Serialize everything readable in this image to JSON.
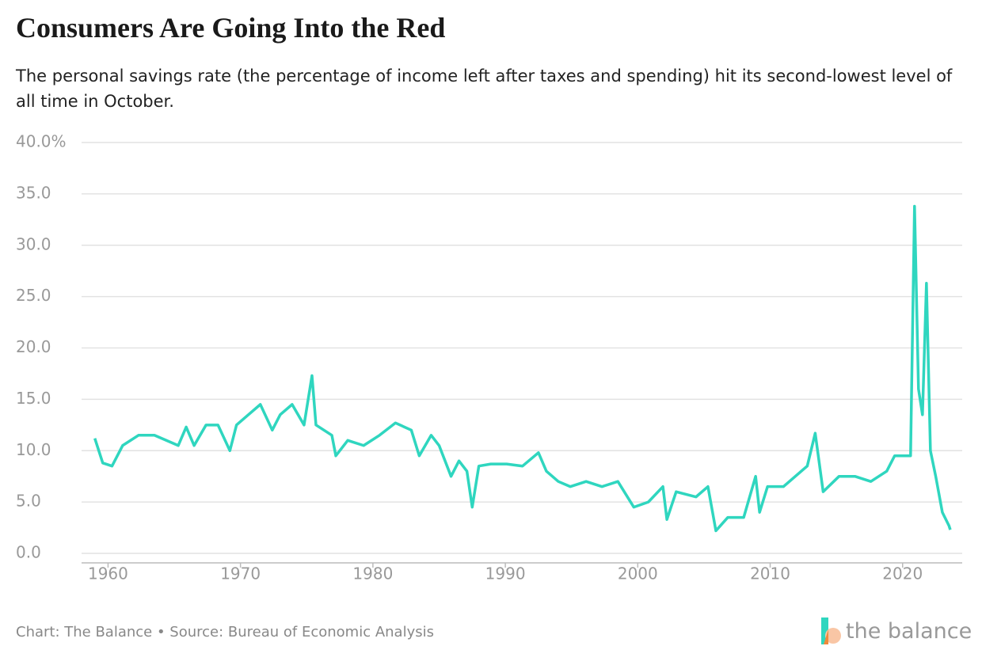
{
  "chart_data": {
    "type": "line",
    "title": "Consumers Are Going Into the Red",
    "subtitle": "The personal savings rate (the percentage of income left after taxes and spending) hit its second-lowest level of all time in October.",
    "source": "Chart: The Balance • Source: Bureau of Economic Analysis",
    "brand": "the balance",
    "xlim": [
      1958,
      2024.5
    ],
    "xticks": [
      1960,
      1970,
      1980,
      1990,
      2000,
      2010,
      2020
    ],
    "ylim": [
      0,
      40
    ],
    "yticks": [
      {
        "value": 0,
        "label": "0.0"
      },
      {
        "value": 5,
        "label": "5.0"
      },
      {
        "value": 10,
        "label": "10.0"
      },
      {
        "value": 15,
        "label": "15.0"
      },
      {
        "value": 20,
        "label": "20.0"
      },
      {
        "value": 25,
        "label": "25.0"
      },
      {
        "value": 30,
        "label": "30.0"
      },
      {
        "value": 35,
        "label": "35.0"
      },
      {
        "value": 40,
        "label": "40.0%"
      }
    ],
    "grid": true,
    "x": [
      1959.0,
      1959.6,
      1960.3,
      1961.1,
      1962.3,
      1963.5,
      1964.4,
      1965.3,
      1965.9,
      1966.5,
      1967.4,
      1968.3,
      1969.2,
      1969.7,
      1970.6,
      1971.5,
      1972.4,
      1973.0,
      1973.9,
      1974.8,
      1975.4,
      1975.7,
      1976.9,
      1977.2,
      1978.1,
      1979.3,
      1980.5,
      1981.7,
      1982.9,
      1983.5,
      1984.4,
      1985.0,
      1985.9,
      1986.5,
      1987.1,
      1987.5,
      1988.0,
      1988.9,
      1990.1,
      1991.3,
      1992.5,
      1993.1,
      1994.0,
      1994.9,
      1996.1,
      1997.3,
      1998.5,
      1999.7,
      2000.8,
      2001.9,
      2002.2,
      2002.9,
      2004.4,
      2005.3,
      2005.9,
      2006.8,
      2008.0,
      2008.9,
      2009.2,
      2009.8,
      2011.0,
      2012.8,
      2013.4,
      2014.0,
      2015.2,
      2016.4,
      2017.6,
      2018.8,
      2019.4,
      2020.6,
      2020.9,
      2021.2,
      2021.5,
      2021.8,
      2022.1,
      2022.5,
      2023.0,
      2023.5,
      2023.6
    ],
    "series": [
      {
        "color": "#2fd6bf",
        "values": [
          11.2,
          8.8,
          8.5,
          10.5,
          11.5,
          11.5,
          11.0,
          10.5,
          12.3,
          10.5,
          12.5,
          12.5,
          10.0,
          12.5,
          13.5,
          14.5,
          12.0,
          13.5,
          14.5,
          12.5,
          17.3,
          12.5,
          11.5,
          9.5,
          11.0,
          10.5,
          11.5,
          12.7,
          12.0,
          9.5,
          11.5,
          10.5,
          7.5,
          9.0,
          8.0,
          4.5,
          8.5,
          8.7,
          8.7,
          8.5,
          9.8,
          8.0,
          7.0,
          6.5,
          7.0,
          6.5,
          7.0,
          4.5,
          5.0,
          6.5,
          3.3,
          6.0,
          5.5,
          6.5,
          2.2,
          3.5,
          3.5,
          7.5,
          4.0,
          6.5,
          6.5,
          8.5,
          11.7,
          6.0,
          7.5,
          7.5,
          7.0,
          8.0,
          9.5,
          9.5,
          33.8,
          16,
          13.5,
          26.3,
          10,
          7.5,
          4.0,
          2.7,
          2.3
        ]
      }
    ]
  }
}
